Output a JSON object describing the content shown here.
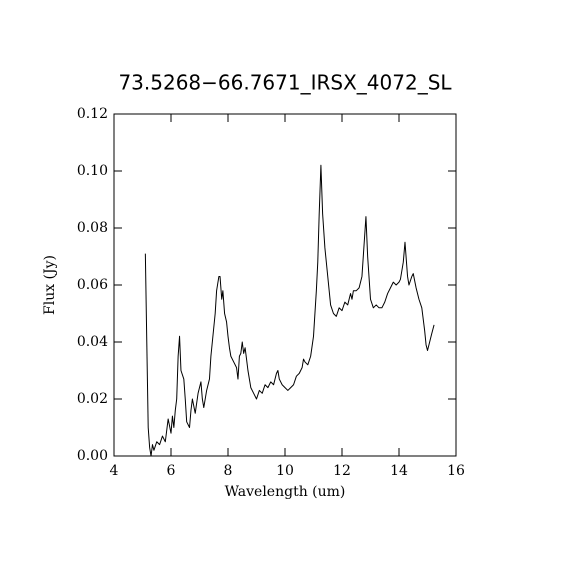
{
  "chart_data": {
    "type": "line",
    "title": "73.5268−66.7671_IRSX_4072_SL",
    "x_label": "Wavelength (um)",
    "y_label": "Flux (Jy)",
    "color": "#000000",
    "x": [
      5.1,
      5.15,
      5.2,
      5.25,
      5.3,
      5.35,
      5.4,
      5.5,
      5.6,
      5.7,
      5.8,
      5.9,
      6.0,
      6.05,
      6.1,
      6.15,
      6.2,
      6.25,
      6.3,
      6.35,
      6.45,
      6.5,
      6.55,
      6.65,
      6.7,
      6.75,
      6.85,
      6.95,
      7.05,
      7.1,
      7.15,
      7.25,
      7.35,
      7.4,
      7.5,
      7.55,
      7.6,
      7.68,
      7.72,
      7.78,
      7.82,
      7.88,
      7.95,
      8.0,
      8.05,
      8.1,
      8.2,
      8.3,
      8.35,
      8.4,
      8.45,
      8.5,
      8.55,
      8.6,
      8.65,
      8.7,
      8.8,
      8.9,
      9.0,
      9.1,
      9.2,
      9.3,
      9.4,
      9.5,
      9.6,
      9.7,
      9.75,
      9.8,
      9.9,
      10.0,
      10.1,
      10.2,
      10.3,
      10.4,
      10.5,
      10.6,
      10.65,
      10.7,
      10.8,
      10.9,
      11.0,
      11.1,
      11.15,
      11.2,
      11.26,
      11.32,
      11.4,
      11.5,
      11.6,
      11.7,
      11.8,
      11.9,
      12.0,
      12.1,
      12.2,
      12.3,
      12.35,
      12.4,
      12.5,
      12.6,
      12.7,
      12.78,
      12.84,
      12.9,
      13.0,
      13.1,
      13.2,
      13.3,
      13.4,
      13.5,
      13.6,
      13.7,
      13.8,
      13.9,
      14.0,
      14.05,
      14.15,
      14.21,
      14.3,
      14.35,
      14.45,
      14.5,
      14.6,
      14.7,
      14.8,
      14.9,
      14.95,
      15.0,
      15.05,
      15.15,
      15.23
    ],
    "values": [
      0.071,
      0.04,
      0.01,
      0.003,
      0.0,
      0.004,
      0.002,
      0.005,
      0.004,
      0.007,
      0.005,
      0.013,
      0.008,
      0.014,
      0.01,
      0.016,
      0.02,
      0.035,
      0.042,
      0.03,
      0.027,
      0.02,
      0.012,
      0.01,
      0.016,
      0.02,
      0.015,
      0.022,
      0.026,
      0.02,
      0.017,
      0.023,
      0.027,
      0.035,
      0.045,
      0.05,
      0.058,
      0.063,
      0.063,
      0.055,
      0.058,
      0.05,
      0.047,
      0.042,
      0.038,
      0.035,
      0.033,
      0.031,
      0.027,
      0.035,
      0.036,
      0.04,
      0.036,
      0.038,
      0.034,
      0.03,
      0.024,
      0.022,
      0.02,
      0.023,
      0.022,
      0.025,
      0.024,
      0.026,
      0.025,
      0.029,
      0.03,
      0.027,
      0.025,
      0.024,
      0.023,
      0.024,
      0.025,
      0.028,
      0.029,
      0.031,
      0.034,
      0.033,
      0.032,
      0.035,
      0.042,
      0.058,
      0.068,
      0.085,
      0.102,
      0.085,
      0.073,
      0.063,
      0.053,
      0.05,
      0.049,
      0.052,
      0.051,
      0.054,
      0.053,
      0.057,
      0.055,
      0.058,
      0.058,
      0.059,
      0.063,
      0.075,
      0.084,
      0.07,
      0.055,
      0.052,
      0.053,
      0.052,
      0.052,
      0.054,
      0.057,
      0.059,
      0.061,
      0.06,
      0.061,
      0.062,
      0.068,
      0.075,
      0.063,
      0.06,
      0.063,
      0.064,
      0.059,
      0.055,
      0.052,
      0.044,
      0.039,
      0.037,
      0.039,
      0.043,
      0.046
    ],
    "xlim": [
      4,
      16
    ],
    "xticks": [
      4,
      6,
      8,
      10,
      12,
      14,
      16
    ],
    "ylim": [
      0,
      0.12
    ],
    "yticks": [
      {
        "value": 0,
        "label": "0.00"
      },
      {
        "value": 0.02,
        "label": "0.02"
      },
      {
        "value": 0.04,
        "label": "0.04"
      },
      {
        "value": 0.06,
        "label": "0.06"
      },
      {
        "value": 0.08,
        "label": "0.08"
      },
      {
        "value": 0.1,
        "label": "0.10"
      },
      {
        "value": 0.12,
        "label": "0.12"
      }
    ]
  }
}
